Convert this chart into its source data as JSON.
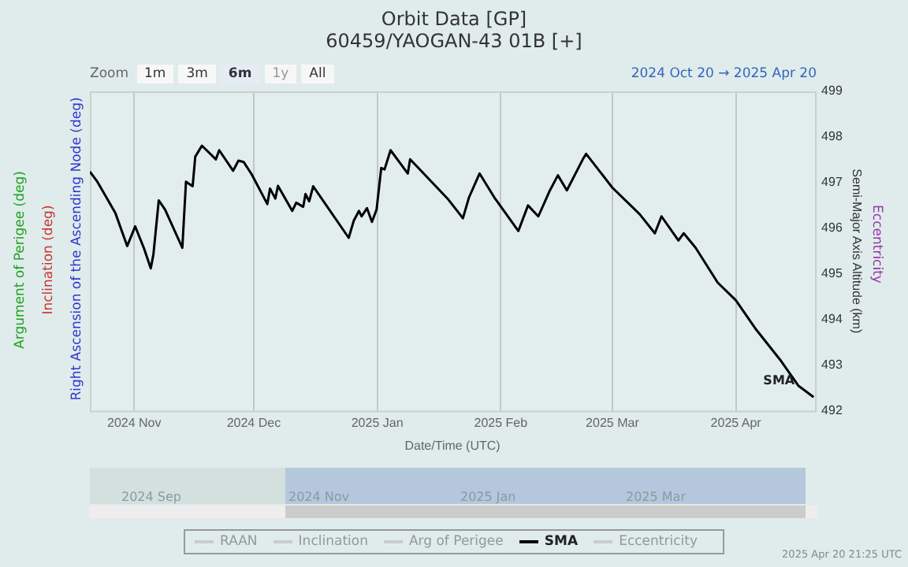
{
  "chart_data": {
    "type": "line",
    "title": "Orbit Data [GP]",
    "subtitle": "60459/YAOGAN-43 01B [+]",
    "xlabel": "Date/Time (UTC)",
    "ylabel": "Semi-Major Axis Altitude (km)",
    "x": [
      "2024-10-20T21:00",
      "2024-10-22T18:00",
      "2024-10-27T06:00",
      "2024-10-30T06:00",
      "2024-11-01T06:00",
      "2024-11-03T12:00",
      "2024-11-05T04:00",
      "2024-11-05T20:00",
      "2024-11-07T04:00",
      "2024-11-08T18:00",
      "2024-11-13T02:00",
      "2024-11-14T00:00",
      "2024-11-15T16:00",
      "2024-11-16T08:00",
      "2024-11-18T00:00",
      "2024-11-21T12:00",
      "2024-11-22T08:00",
      "2024-11-25T20:00",
      "2024-11-27T04:00",
      "2024-11-28T12:00",
      "2024-11-30T12:00",
      "2024-12-04T10:00",
      "2024-12-05T02:00",
      "2024-12-06T10:00",
      "2024-12-07T02:00",
      "2024-12-10T16:00",
      "2024-12-11T16:00",
      "2024-12-13T10:00",
      "2024-12-14T00:00",
      "2024-12-14T22:00",
      "2024-12-15T22:00",
      "2024-12-24T20:00",
      "2024-12-26T02:00",
      "2024-12-27T10:00",
      "2024-12-28T02:00",
      "2024-12-29T10:00",
      "2024-12-30T16:00",
      "2024-12-31T20:00",
      "2025-01-02T00:00",
      "2025-01-02T20:00",
      "2025-01-04T08:00",
      "2025-01-08T16:00",
      "2025-01-09T06:00",
      "2025-01-18T20:00",
      "2025-01-22T12:00",
      "2025-01-24T00:00",
      "2025-01-26T16:00",
      "2025-01-30T10:00",
      "2025-02-05T10:00",
      "2025-02-07T20:00",
      "2025-02-10T10:00",
      "2025-02-13T08:00",
      "2025-02-15T08:00",
      "2025-02-17T14:00",
      "2025-02-21T14:00",
      "2025-02-22T10:00",
      "2025-03-01T00:00",
      "2025-03-07T20:00",
      "2025-03-11T16:00",
      "2025-03-13T08:00",
      "2025-03-17T14:00",
      "2025-03-18T22:00",
      "2025-03-21T22:00",
      "2025-03-27T10:00",
      "2025-04-01T00:00",
      "2025-04-06T04:00",
      "2025-04-12T02:00",
      "2025-04-16T16:00",
      "2025-04-20T12:00"
    ],
    "series": [
      {
        "name": "RAAN",
        "color": "#cccccc",
        "values": [
          null,
          null,
          null,
          null,
          null,
          null,
          null,
          null,
          null,
          null,
          null,
          null,
          null,
          null,
          null,
          null,
          null,
          null,
          null,
          null,
          null,
          null,
          null,
          null,
          null,
          null,
          null,
          null,
          null,
          null,
          null,
          null,
          null,
          null,
          null,
          null,
          null,
          null,
          null,
          null,
          null,
          null,
          null,
          null,
          null,
          null,
          null,
          null,
          null,
          null,
          null,
          null,
          null,
          null,
          null,
          null,
          null,
          null,
          null,
          null,
          null,
          null,
          null,
          null,
          null,
          null,
          null,
          null,
          null
        ]
      },
      {
        "name": "Inclination",
        "color": "#cccccc",
        "values": [
          null,
          null,
          null,
          null,
          null,
          null,
          null,
          null,
          null,
          null,
          null,
          null,
          null,
          null,
          null,
          null,
          null,
          null,
          null,
          null,
          null,
          null,
          null,
          null,
          null,
          null,
          null,
          null,
          null,
          null,
          null,
          null,
          null,
          null,
          null,
          null,
          null,
          null,
          null,
          null,
          null,
          null,
          null,
          null,
          null,
          null,
          null,
          null,
          null,
          null,
          null,
          null,
          null,
          null,
          null,
          null,
          null,
          null,
          null,
          null,
          null,
          null,
          null,
          null,
          null,
          null,
          null,
          null,
          null
        ]
      },
      {
        "name": "Arg of Perigee",
        "color": "#cccccc",
        "values": [
          null,
          null,
          null,
          null,
          null,
          null,
          null,
          null,
          null,
          null,
          null,
          null,
          null,
          null,
          null,
          null,
          null,
          null,
          null,
          null,
          null,
          null,
          null,
          null,
          null,
          null,
          null,
          null,
          null,
          null,
          null,
          null,
          null,
          null,
          null,
          null,
          null,
          null,
          null,
          null,
          null,
          null,
          null,
          null,
          null,
          null,
          null,
          null,
          null,
          null,
          null,
          null,
          null,
          null,
          null,
          null,
          null,
          null,
          null,
          null,
          null,
          null,
          null,
          null,
          null,
          null,
          null,
          null,
          null
        ]
      },
      {
        "name": "SMA",
        "color": "#000000",
        "values": [
          497.24,
          497.02,
          496.34,
          495.61,
          496.04,
          495.55,
          495.12,
          495.43,
          496.61,
          496.41,
          495.57,
          497.02,
          496.92,
          497.57,
          497.81,
          497.51,
          497.71,
          497.26,
          497.48,
          497.45,
          497.18,
          496.53,
          496.87,
          496.65,
          496.93,
          496.38,
          496.56,
          496.47,
          496.75,
          496.59,
          496.92,
          495.79,
          496.16,
          496.38,
          496.26,
          496.44,
          496.14,
          496.41,
          497.32,
          497.29,
          497.71,
          497.2,
          497.51,
          496.63,
          496.22,
          496.67,
          497.2,
          496.67,
          495.94,
          496.5,
          496.26,
          496.83,
          497.16,
          496.83,
          497.51,
          497.63,
          496.89,
          496.31,
          495.89,
          496.26,
          495.73,
          495.89,
          495.57,
          494.81,
          494.42,
          493.77,
          493.12,
          492.55,
          492.3
        ]
      },
      {
        "name": "Eccentricity",
        "color": "#cccccc",
        "values": [
          null,
          null,
          null,
          null,
          null,
          null,
          null,
          null,
          null,
          null,
          null,
          null,
          null,
          null,
          null,
          null,
          null,
          null,
          null,
          null,
          null,
          null,
          null,
          null,
          null,
          null,
          null,
          null,
          null,
          null,
          null,
          null,
          null,
          null,
          null,
          null,
          null,
          null,
          null,
          null,
          null,
          null,
          null,
          null,
          null,
          null,
          null,
          null,
          null,
          null,
          null,
          null,
          null,
          null,
          null,
          null,
          null,
          null,
          null,
          null,
          null,
          null,
          null,
          null,
          null,
          null,
          null,
          null,
          null
        ]
      }
    ],
    "xlim": [
      "2024-10-20T21:00",
      "2025-04-20T21:00"
    ],
    "xticks": [
      {
        "value": "2024-11-01",
        "label": "2024 Nov"
      },
      {
        "value": "2024-12-01",
        "label": "2024 Dec"
      },
      {
        "value": "2025-01-01",
        "label": "2025 Jan"
      },
      {
        "value": "2025-02-01",
        "label": "2025 Feb"
      },
      {
        "value": "2025-03-01",
        "label": "2025 Mar"
      },
      {
        "value": "2025-04-01",
        "label": "2025 Apr"
      }
    ],
    "ylim": [
      492,
      499
    ],
    "yticks": [
      492,
      493,
      494,
      495,
      496,
      497,
      498,
      499
    ],
    "grid": "x",
    "legend": "bottom",
    "marker": "none",
    "line_style": "solid",
    "annotations": [
      "Zoom",
      "1m",
      "3m",
      "6m",
      "1y",
      "All",
      "2024 Oct 20 → 2025 Apr 20",
      "Argument of Perigee (deg)",
      "Inclination (deg)",
      "Right Ascension of the Ascending Node (deg)",
      "Eccentricity",
      "2024 Sep",
      "2024 Nov",
      "2025 Jan",
      "2025 Mar",
      "2025 Apr 20 21:25 UTC"
    ]
  }
}
